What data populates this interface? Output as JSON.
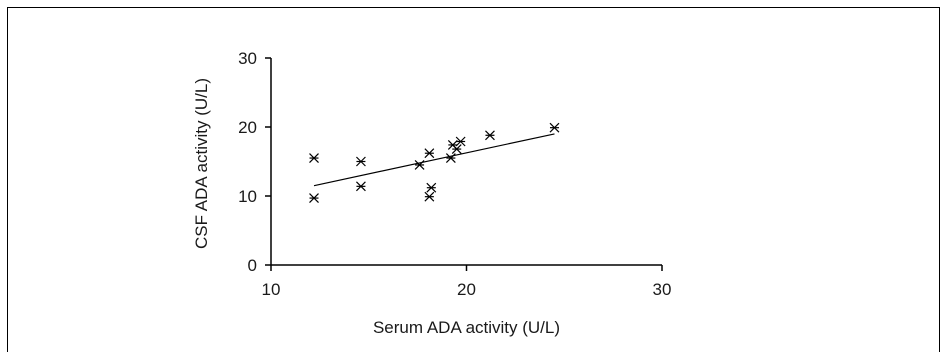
{
  "chart_data": {
    "type": "scatter",
    "title": "",
    "xlabel": "Serum ADA activity (U/L)",
    "ylabel": "CSF ADA activity (U/L)",
    "xlim": [
      10,
      30
    ],
    "ylim": [
      0,
      30
    ],
    "xticks": [
      10,
      20,
      30
    ],
    "yticks": [
      0,
      10,
      20,
      30
    ],
    "grid": false,
    "marker": "asterisk",
    "points": [
      {
        "x": 12.2,
        "y": 15.5
      },
      {
        "x": 12.2,
        "y": 9.7
      },
      {
        "x": 14.6,
        "y": 15.0
      },
      {
        "x": 14.6,
        "y": 11.4
      },
      {
        "x": 17.6,
        "y": 14.5
      },
      {
        "x": 18.1,
        "y": 16.2
      },
      {
        "x": 18.2,
        "y": 11.2
      },
      {
        "x": 18.1,
        "y": 9.9
      },
      {
        "x": 19.2,
        "y": 15.5
      },
      {
        "x": 19.3,
        "y": 17.4
      },
      {
        "x": 19.5,
        "y": 16.8
      },
      {
        "x": 19.7,
        "y": 17.9
      },
      {
        "x": 21.2,
        "y": 18.8
      },
      {
        "x": 24.5,
        "y": 19.9
      }
    ],
    "trendline": [
      {
        "x": 12.2,
        "y": 11.5
      },
      {
        "x": 24.5,
        "y": 19.0
      }
    ]
  }
}
